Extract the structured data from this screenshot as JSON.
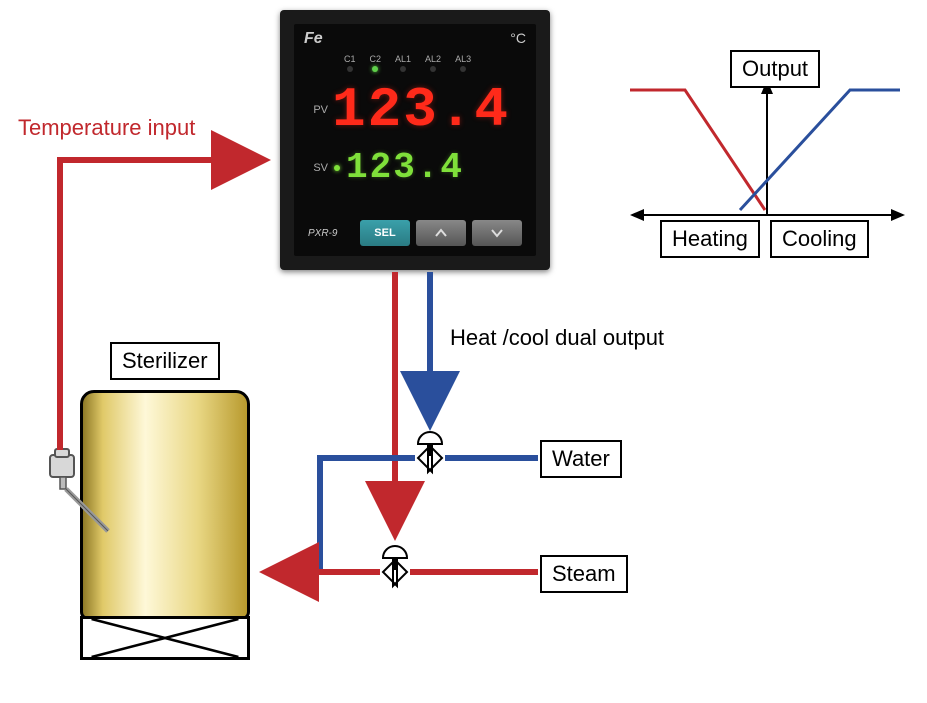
{
  "colors": {
    "heat": "#c1282d",
    "cool": "#2a4f9c",
    "tank_border": "#000000",
    "controller_bg": "#1a1a1a",
    "pv_color": "#ff2a1a",
    "sv_color": "#7fe03a",
    "label_border": "#000000",
    "background": "#ffffff"
  },
  "fonts": {
    "label_size_pt": 17
  },
  "labels": {
    "temperature_input": "Temperature input",
    "sterilizer": "Sterilizer",
    "dual_output": "Heat /cool dual output",
    "water": "Water",
    "steam": "Steam",
    "output": "Output",
    "heating": "Heating",
    "cooling": "Cooling"
  },
  "controller": {
    "logo": "Fe",
    "unit": "°C",
    "model": "PXR-9",
    "pv_label": "PV",
    "sv_label": "SV",
    "pv_value": "123.4",
    "sv_value": "123.4",
    "indicators": [
      {
        "label": "C1",
        "on": false
      },
      {
        "label": "C2",
        "on": true
      },
      {
        "label": "AL1",
        "on": false
      },
      {
        "label": "AL2",
        "on": false
      },
      {
        "label": "AL3",
        "on": false
      }
    ],
    "buttons": {
      "sel": "SEL",
      "up": "up",
      "down": "down"
    }
  },
  "graph": {
    "type": "line",
    "y_axis_label": "Output",
    "x_left_label": "Heating",
    "x_right_label": "Cooling",
    "heating_curve": {
      "color": "#c1282d",
      "width": 3,
      "points": [
        [
          0,
          30
        ],
        [
          55,
          30
        ],
        [
          135,
          150
        ]
      ]
    },
    "cooling_curve": {
      "color": "#2a4f9c",
      "width": 3,
      "points": [
        [
          110,
          150
        ],
        [
          220,
          30
        ],
        [
          270,
          30
        ]
      ]
    },
    "axis_color": "#000000",
    "axis_width": 2
  },
  "tank": {
    "label": "Sterilizer",
    "gradient_stops": [
      "#8f7a27",
      "#e0c968",
      "#fef8d8",
      "#e9d784",
      "#b89a2e"
    ]
  },
  "flow": {
    "line_width": 6,
    "heat_line_color": "#c1282d",
    "cool_line_color": "#2a4f9c",
    "arrows": [
      {
        "type": "temperature_input",
        "color": "#c1282d"
      },
      {
        "type": "heat_output",
        "color": "#c1282d"
      },
      {
        "type": "cool_output",
        "color": "#2a4f9c"
      },
      {
        "type": "steam_to_tank",
        "color": "#c1282d"
      }
    ]
  }
}
